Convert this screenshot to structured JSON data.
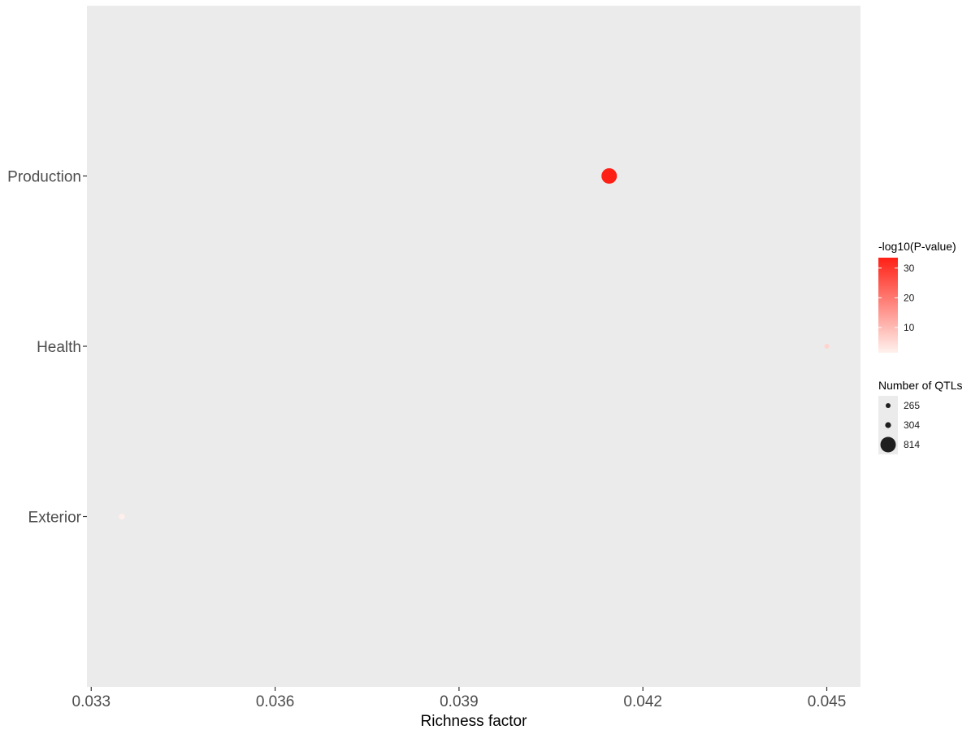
{
  "chart_data": {
    "type": "scatter",
    "xlabel": "Richness factor",
    "ylabel": "",
    "title": "",
    "categories": [
      "Exterior",
      "Health",
      "Production"
    ],
    "x_ticks": [
      0.033,
      0.036,
      0.039,
      0.042,
      0.045
    ],
    "x_tick_labels": [
      "0.033",
      "0.036",
      "0.039",
      "0.042",
      "0.045"
    ],
    "xlim": [
      0.03293,
      0.04555
    ],
    "grid": false,
    "points": [
      {
        "category": "Production",
        "x": 0.04145,
        "count": 814,
        "neglog10p": 34
      },
      {
        "category": "Health",
        "x": 0.045,
        "count": 265,
        "neglog10p": 6
      },
      {
        "category": "Exterior",
        "x": 0.0335,
        "count": 304,
        "neglog10p": 2
      }
    ],
    "color_legend": {
      "title": "-log10(P-value)",
      "ticks": [
        10,
        20,
        30
      ],
      "tick_labels": [
        "10",
        "20",
        "30"
      ],
      "min": 1.5,
      "max": 33.5,
      "low_color": "#fff2ee",
      "high_color": "#ff2015"
    },
    "size_legend": {
      "title": "Number of QTLs",
      "entries": [
        {
          "value": 265,
          "label": "265"
        },
        {
          "value": 304,
          "label": "304"
        },
        {
          "value": 814,
          "label": "814"
        }
      ]
    },
    "legend_position": "right"
  }
}
